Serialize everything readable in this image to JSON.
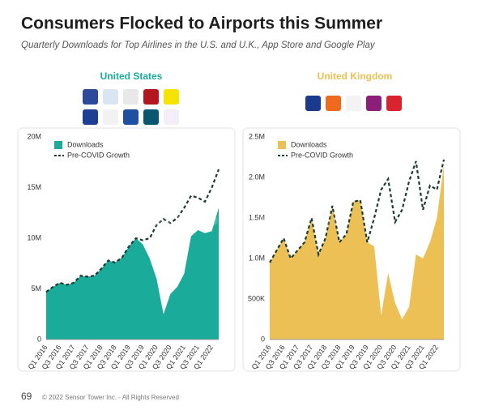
{
  "title": "Consumers Flocked to Airports this Summer",
  "subtitle": "Quarterly Downloads for Top Airlines in the U.S. and U.K., App Store and Google Play",
  "watermark": "SensorTower",
  "footer": {
    "page": "69",
    "copyright": "© 2022 Sensor Tower Inc. - All Rights Reserved"
  },
  "chart_data": [
    {
      "type": "area",
      "title": "United States",
      "title_color": "#1aab9b",
      "categories": [
        "Q1 2016",
        null,
        "Q3 2016",
        null,
        "Q1 2017",
        null,
        "Q3 2017",
        null,
        "Q1 2018",
        null,
        "Q3 2018",
        null,
        "Q1 2019",
        null,
        "Q3 2019",
        null,
        "Q1 2020",
        null,
        "Q3 2020",
        null,
        "Q1 2021",
        null,
        "Q3 2021",
        null,
        "Q1 2022",
        null
      ],
      "ylim": [
        0,
        20000000
      ],
      "yticks": [
        0,
        {
          "value": 5000000,
          "label": "5M"
        },
        {
          "value": 10000000,
          "label": "10M"
        },
        {
          "value": 15000000,
          "label": "15M"
        },
        {
          "value": 20000000,
          "label": "20M"
        }
      ],
      "grid": false,
      "series": [
        {
          "name": "Downloads",
          "type": "area",
          "color": "#1aab9b",
          "values": [
            4700000,
            5200000,
            5600000,
            5400000,
            5600000,
            6300000,
            6200000,
            6300000,
            7000000,
            7800000,
            7600000,
            8100000,
            9200000,
            10000000,
            9400000,
            8000000,
            6000000,
            2500000,
            4500000,
            5200000,
            6500000,
            10200000,
            10800000,
            10500000,
            10700000,
            13000000
          ]
        },
        {
          "name": "Pre-COVID Growth",
          "type": "line",
          "dashed": true,
          "color": "#1f3b30",
          "values": [
            4700000,
            5200000,
            5600000,
            5400000,
            5600000,
            6300000,
            6200000,
            6300000,
            7000000,
            7800000,
            7600000,
            8100000,
            9200000,
            10000000,
            9800000,
            10000000,
            11300000,
            11900000,
            11500000,
            12000000,
            13000000,
            14200000,
            14000000,
            13600000,
            15000000,
            16800000
          ]
        }
      ]
    },
    {
      "type": "area",
      "title": "United Kingdom",
      "title_color": "#ecc054",
      "categories": [
        "Q1 2016",
        null,
        "Q3 2016",
        null,
        "Q1 2017",
        null,
        "Q3 2017",
        null,
        "Q1 2018",
        null,
        "Q3 2018",
        null,
        "Q1 2019",
        null,
        "Q3 2019",
        null,
        "Q1 2020",
        null,
        "Q3 2020",
        null,
        "Q1 2021",
        null,
        "Q3 2021",
        null,
        "Q1 2022",
        null
      ],
      "ylim": [
        0,
        2500000
      ],
      "yticks": [
        0,
        {
          "value": 500000,
          "label": "500K"
        },
        {
          "value": 1000000,
          "label": "1.0M"
        },
        {
          "value": 1500000,
          "label": "1.5M"
        },
        {
          "value": 2000000,
          "label": "2.0M"
        },
        {
          "value": 2500000,
          "label": "2.5M"
        }
      ],
      "grid": false,
      "series": [
        {
          "name": "Downloads",
          "type": "area",
          "color": "#ecc054",
          "values": [
            950000,
            1100000,
            1250000,
            1000000,
            1100000,
            1200000,
            1500000,
            1050000,
            1250000,
            1650000,
            1200000,
            1300000,
            1700000,
            1720000,
            1200000,
            1150000,
            300000,
            820000,
            450000,
            250000,
            400000,
            1050000,
            1000000,
            1200000,
            1500000,
            2150000
          ]
        },
        {
          "name": "Pre-COVID Growth",
          "type": "line",
          "dashed": true,
          "color": "#1f3b30",
          "values": [
            950000,
            1100000,
            1250000,
            1000000,
            1100000,
            1200000,
            1500000,
            1050000,
            1250000,
            1650000,
            1200000,
            1300000,
            1700000,
            1720000,
            1200000,
            1500000,
            1850000,
            1980000,
            1450000,
            1600000,
            1950000,
            2200000,
            1600000,
            1900000,
            1850000,
            2220000
          ]
        }
      ]
    }
  ]
}
